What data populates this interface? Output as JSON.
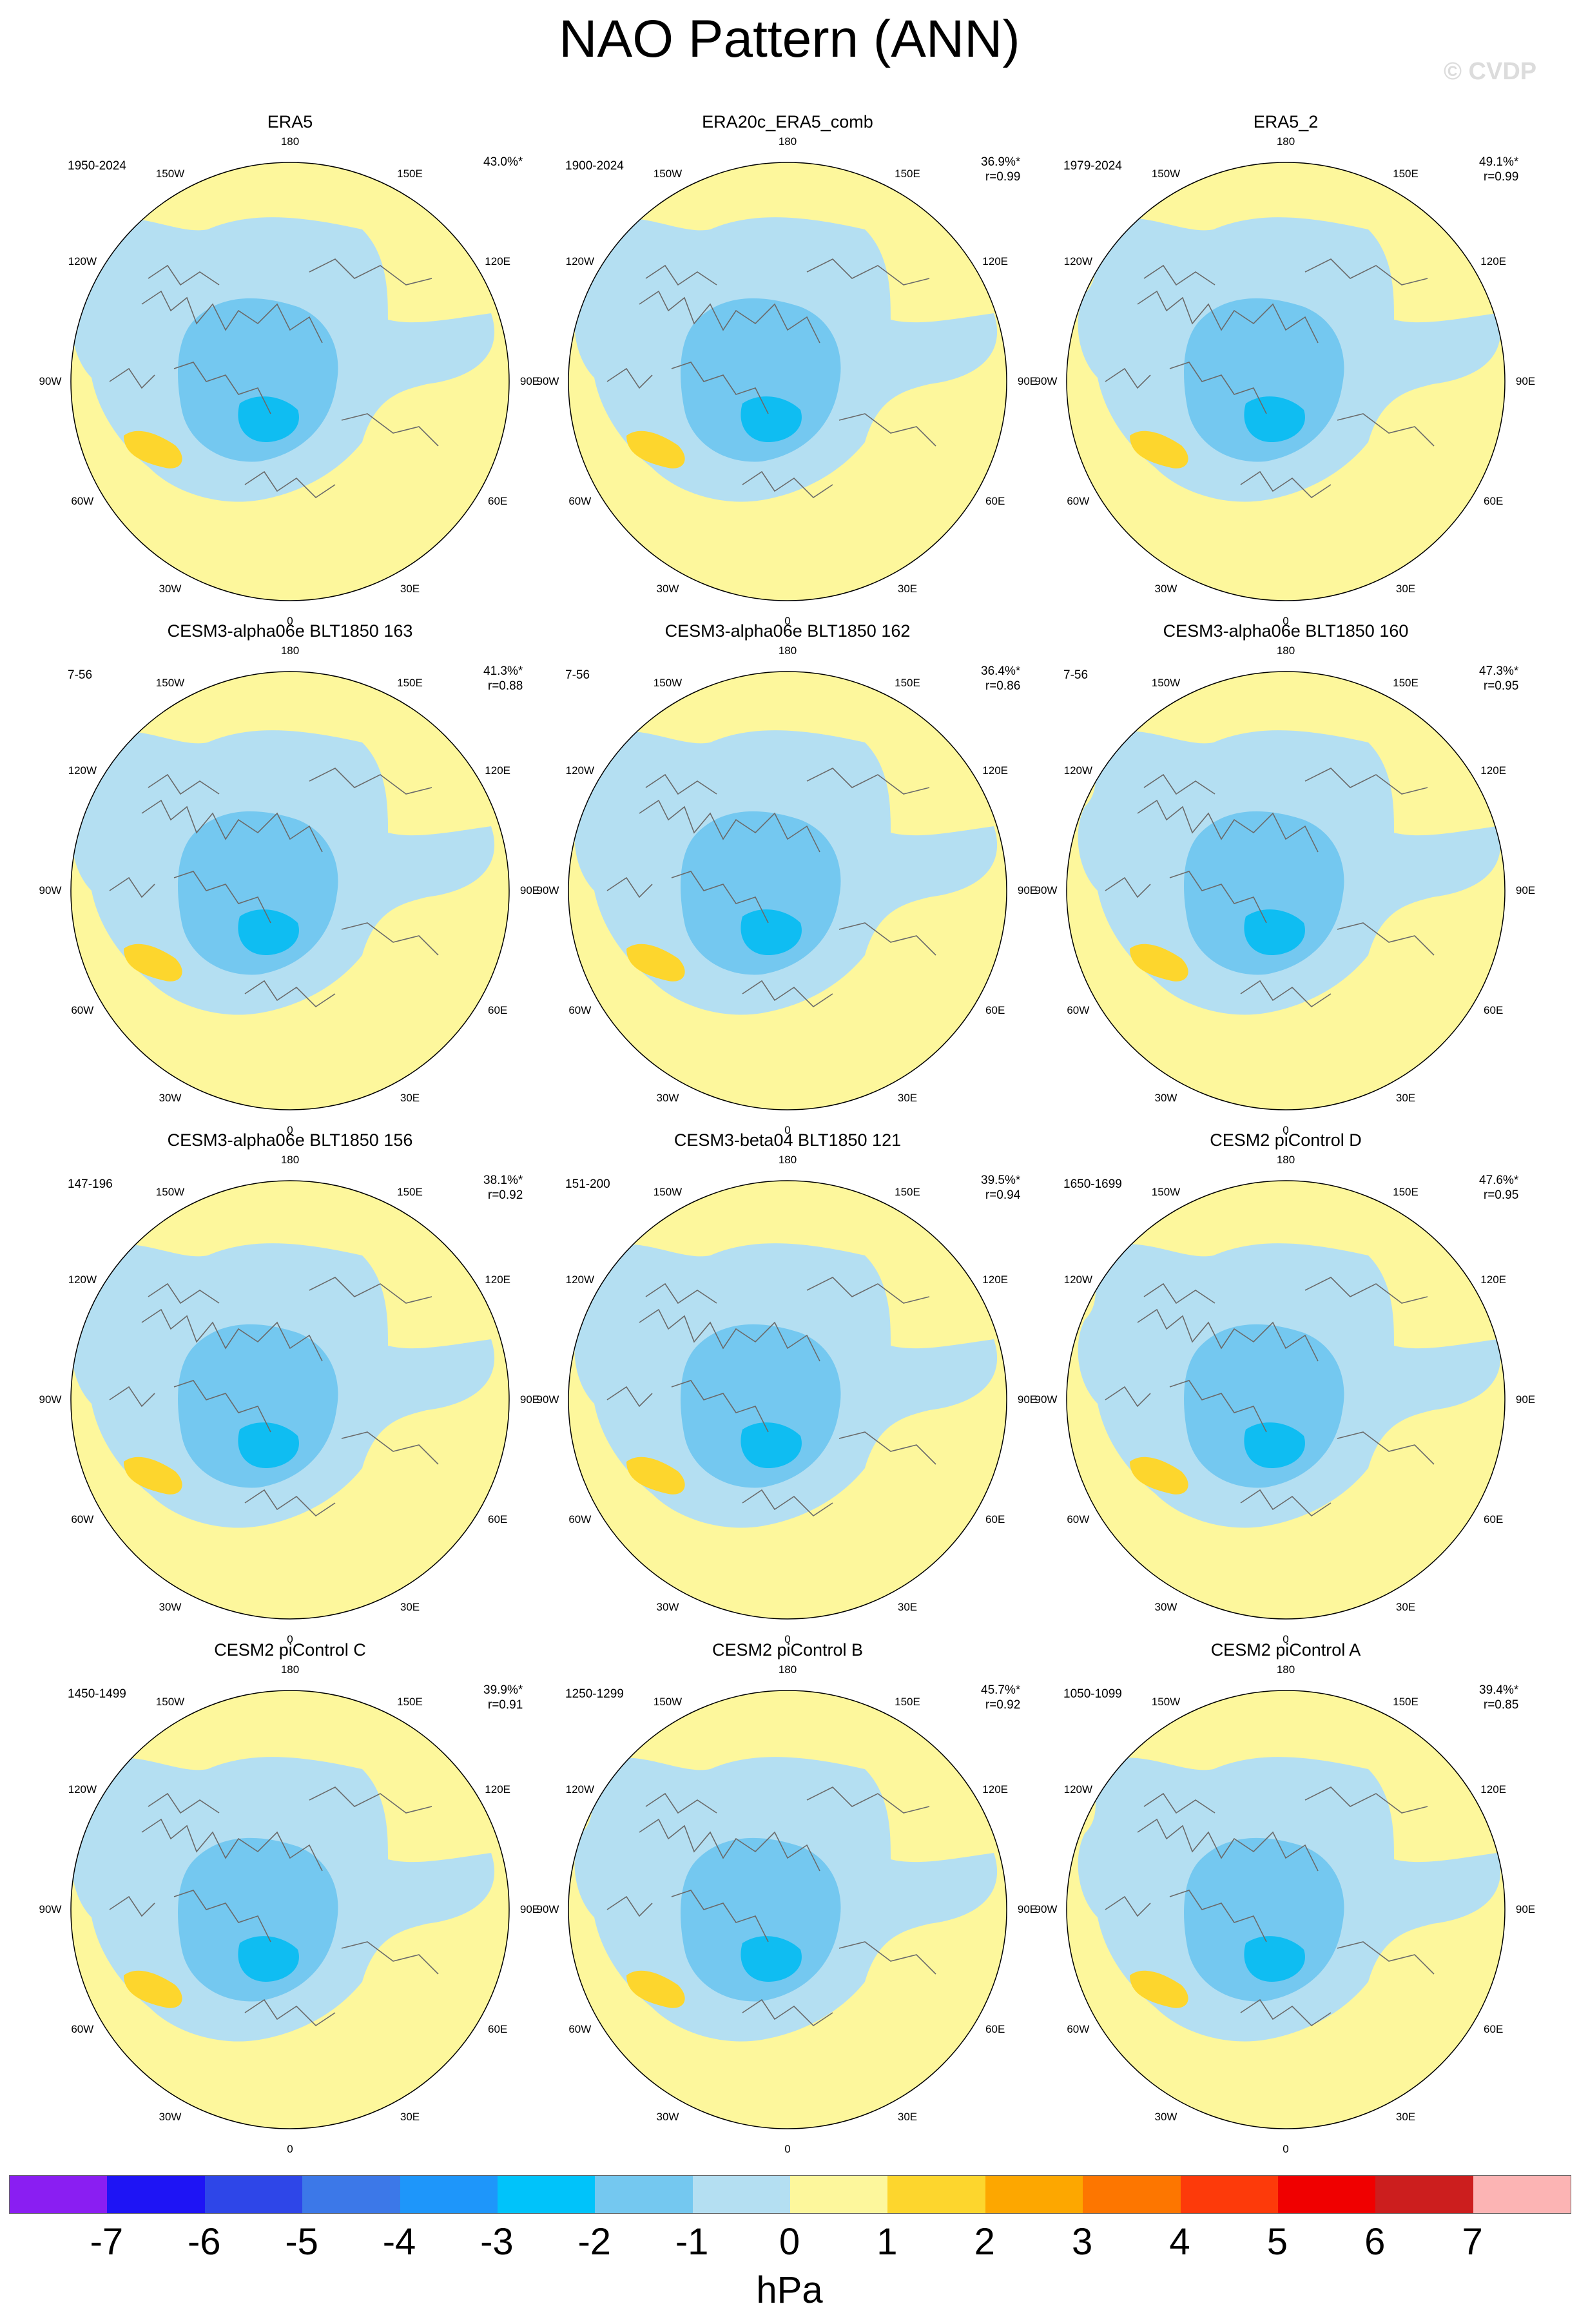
{
  "title": "NAO Pattern (ANN)",
  "credit": "© CVDP",
  "lon_labels": [
    "180",
    "150E",
    "120E",
    "90E",
    "60E",
    "30E",
    "0",
    "30W",
    "60W",
    "90W",
    "120W",
    "150W"
  ],
  "colors": {
    "neg1": "#b4dff2",
    "neg2": "#74c8f0",
    "neg3": "#0fbdf2",
    "pos1": "#fdf79c",
    "pos2": "#fdd62d",
    "coast": "#6a6a6a"
  },
  "panels": [
    {
      "title": "ERA5",
      "period": "1950-2024",
      "pct": "43.0%*",
      "r": ""
    },
    {
      "title": "ERA20c_ERA5_comb",
      "period": "1900-2024",
      "pct": "36.9%*",
      "r": "r=0.99"
    },
    {
      "title": "ERA5_2",
      "period": "1979-2024",
      "pct": "49.1%*",
      "r": "r=0.99"
    },
    {
      "title": "CESM3-alpha06e BLT1850 163",
      "period": "7-56",
      "pct": "41.3%*",
      "r": "r=0.88"
    },
    {
      "title": "CESM3-alpha06e BLT1850 162",
      "period": "7-56",
      "pct": "36.4%*",
      "r": "r=0.86"
    },
    {
      "title": "CESM3-alpha06e BLT1850 160",
      "period": "7-56",
      "pct": "47.3%*",
      "r": "r=0.95"
    },
    {
      "title": "CESM3-alpha06e BLT1850 156",
      "period": "147-196",
      "pct": "38.1%*",
      "r": "r=0.92"
    },
    {
      "title": "CESM3-beta04 BLT1850 121",
      "period": "151-200",
      "pct": "39.5%*",
      "r": "r=0.94"
    },
    {
      "title": "CESM2 piControl D",
      "period": "1650-1699",
      "pct": "47.6%*",
      "r": "r=0.95"
    },
    {
      "title": "CESM2 piControl C",
      "period": "1450-1499",
      "pct": "39.9%*",
      "r": "r=0.91"
    },
    {
      "title": "CESM2 piControl B",
      "period": "1250-1299",
      "pct": "45.7%*",
      "r": "r=0.92"
    },
    {
      "title": "CESM2 piControl A",
      "period": "1050-1099",
      "pct": "39.4%*",
      "r": "r=0.85"
    }
  ],
  "colorbar": {
    "colors": [
      "#8a1ef2",
      "#1e14f5",
      "#2e46e8",
      "#3c78e8",
      "#1e96fa",
      "#00c3fa",
      "#74c8f0",
      "#b4dff2",
      "#fdf79c",
      "#fdd62d",
      "#fda700",
      "#fd7600",
      "#fd3a0a",
      "#f00000",
      "#cc1e1e",
      "#fcb4b4"
    ],
    "ticks": [
      "-7",
      "-6",
      "-5",
      "-4",
      "-3",
      "-2",
      "-1",
      "0",
      "1",
      "2",
      "3",
      "4",
      "5",
      "6",
      "7"
    ],
    "units": "hPa"
  }
}
